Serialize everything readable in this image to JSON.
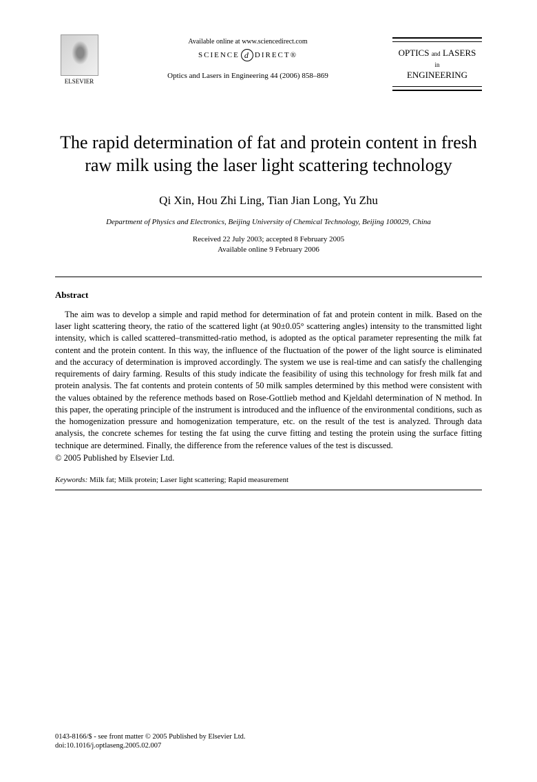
{
  "header": {
    "publisher": "ELSEVIER",
    "available_text": "Available online at www.sciencedirect.com",
    "science_direct_left": "SCIENCE",
    "science_direct_symbol": "d",
    "science_direct_right": "DIRECT®",
    "journal_reference": "Optics and Lasers in Engineering 44 (2006) 858–869",
    "journal_title_line1": "OPTICS",
    "journal_title_and": "and",
    "journal_title_line1b": "LASERS",
    "journal_title_in": "in",
    "journal_title_line2": "ENGINEERING"
  },
  "article": {
    "title": "The rapid determination of fat and protein content in fresh raw milk using the laser light scattering technology",
    "authors": "Qi Xin, Hou Zhi Ling, Tian Jian Long, Yu Zhu",
    "affiliation": "Department of Physics and Electronics, Beijing University of Chemical Technology, Beijing 100029, China",
    "received": "Received 22 July 2003; accepted 8 February 2005",
    "available": "Available online 9 February 2006"
  },
  "abstract": {
    "heading": "Abstract",
    "body": "The aim was to develop a simple and rapid method for determination of fat and protein content in milk. Based on the laser light scattering theory, the ratio of the scattered light (at 90±0.05° scattering angles) intensity to the transmitted light intensity, which is called scattered–transmitted-ratio method, is adopted as the optical parameter representing the milk fat content and the protein content. In this way, the influence of the fluctuation of the power of the light source is eliminated and the accuracy of determination is improved accordingly. The system we use is real-time and can satisfy the challenging requirements of dairy farming. Results of this study indicate the feasibility of using this technology for fresh milk fat and protein analysis. The fat contents and protein contents of 50 milk samples determined by this method were consistent with the values obtained by the reference methods based on Rose-Gottlieb method and Kjeldahl determination of N method. In this paper, the operating principle of the instrument is introduced and the influence of the environmental conditions, such as the homogenization pressure and homogenization temperature, etc. on the result of the test is analyzed. Through data analysis, the concrete schemes for testing the fat using the curve fitting and testing the protein using the surface fitting technique are determined. Finally, the difference from the reference values of the test is discussed.",
    "copyright": "© 2005 Published by Elsevier Ltd."
  },
  "keywords": {
    "label": "Keywords:",
    "text": " Milk fat; Milk protein; Laser light scattering; Rapid measurement"
  },
  "footer": {
    "line1": "0143-8166/$ - see front matter © 2005 Published by Elsevier Ltd.",
    "line2": "doi:10.1016/j.optlaseng.2005.02.007"
  }
}
